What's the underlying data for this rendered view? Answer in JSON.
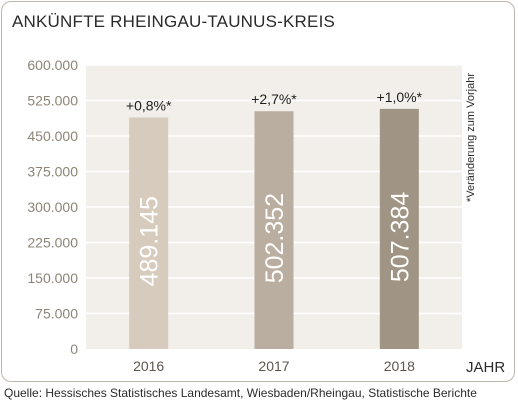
{
  "title": "ANKÜNFTE RHEINGAU-TAUNUS-KREIS",
  "source": "Quelle: Hessisches Statistisches Landesamt, Wiesbaden/Rheingau, Statistische Berichte",
  "colors": {
    "plot_background": "#f2efea",
    "grid": "#ffffff",
    "bars": [
      "#d6cbbd",
      "#b9ae9f",
      "#a09584"
    ]
  },
  "chart_data": {
    "type": "bar",
    "title": "ANKÜNFTE RHEINGAU-TAUNUS-KREIS",
    "xlabel": "JAHR",
    "ylabel": "",
    "categories": [
      "2016",
      "2017",
      "2018"
    ],
    "values": [
      489145,
      502352,
      507384
    ],
    "value_labels": [
      "489.145",
      "502.352",
      "507.384"
    ],
    "change_labels": [
      "+0,8%*",
      "+2,7%*",
      "+1,0%*"
    ],
    "side_note": "*Veränderung zum Vorjahr",
    "ylim": [
      0,
      600000
    ],
    "y_ticks": [
      0,
      75000,
      150000,
      225000,
      300000,
      375000,
      450000,
      525000,
      600000
    ],
    "y_tick_labels": [
      "0",
      "75.000",
      "150.000",
      "225.000",
      "300.000",
      "375.000",
      "450.000",
      "525.000",
      "600.000"
    ],
    "grid": true,
    "legend": "none"
  }
}
